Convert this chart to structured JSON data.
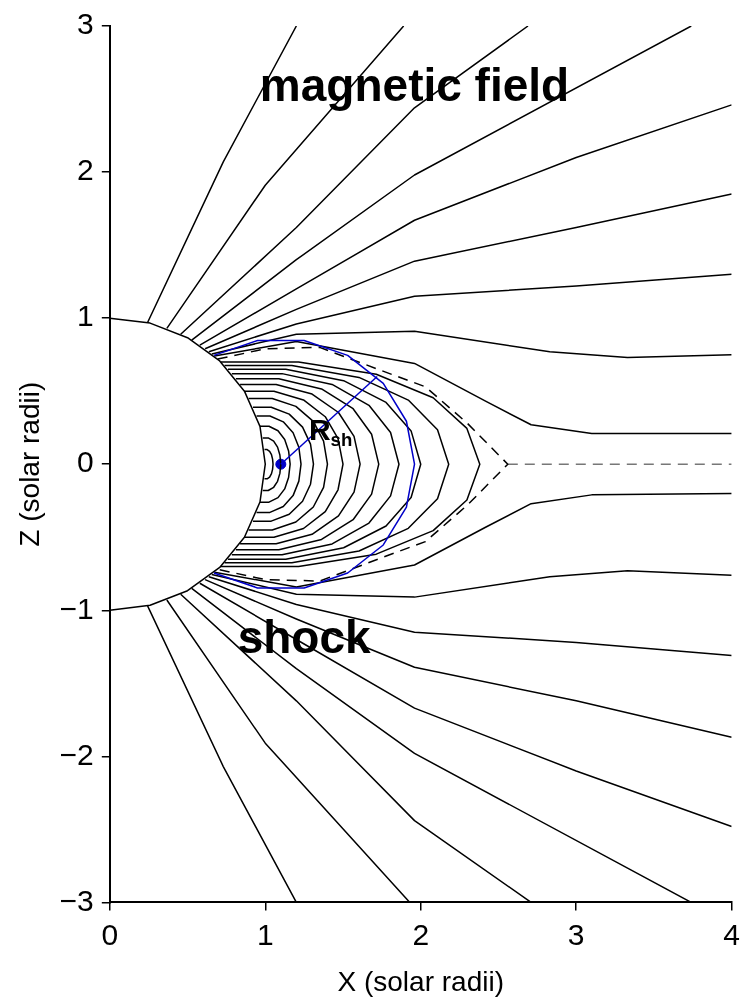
{
  "chart_data": {
    "type": "line",
    "xlabel": "X (solar radii)",
    "ylabel": "Z (solar radii)",
    "xlim": [
      0,
      4
    ],
    "xticks": [
      0,
      1,
      2,
      3,
      4
    ],
    "ylim": [
      -3,
      3
    ],
    "yticks": [
      -3,
      -2,
      -1,
      0,
      1,
      2,
      3
    ],
    "grid": false,
    "marker": "none",
    "annotations": [
      "magnetic field",
      {
        "text": "shock",
        "x": 1.25,
        "y": -0.847
      },
      {
        "text": "R$_{sh}$",
        "x": 1.42,
        "y": 0.22
      }
    ],
    "series": [
      {
        "color": "#000000",
        "x": [
          0,
          0.259,
          0.5,
          0.707,
          0.866,
          0.966,
          1,
          0.966,
          0.866,
          0.707,
          0.5,
          0.259,
          0
        ],
        "values": [
          1,
          0.966,
          0.866,
          0.707,
          0.5,
          0.259,
          0,
          -0.259,
          -0.5,
          -0.707,
          -0.866,
          -0.966,
          -1
        ]
      },
      {
        "color": "#0000c8",
        "x": [
          0.67,
          0.95,
          1.25,
          1.53,
          1.759,
          1.908,
          1.96,
          1.908,
          1.759,
          1.53,
          1.25,
          0.95,
          0.67
        ],
        "values": [
          0.745,
          0.847,
          0.847,
          0.745,
          0.553,
          0.294,
          0,
          -0.294,
          -0.553,
          -0.745,
          -0.847,
          -0.847,
          -0.745
        ]
      },
      {
        "color": "#0000c8",
        "x": [
          1.1,
          1.72
        ],
        "values": [
          0,
          0.6
        ]
      },
      {
        "color": "#000000",
        "line_style": "dashed",
        "x": [
          0.694,
          1.0,
          1.35,
          1.8,
          2.03,
          2.3,
          2.56,
          2.3,
          2.03,
          1.8,
          1.35,
          1.0,
          0.694
        ],
        "values": [
          0.72,
          0.79,
          0.8,
          0.62,
          0.53,
          0.28,
          0,
          -0.28,
          -0.53,
          -0.62,
          -0.8,
          -0.79,
          -0.72
        ]
      },
      {
        "color": "#777777",
        "line_style": "dashed",
        "x": [
          2.56,
          4
        ],
        "values": [
          0,
          0
        ]
      },
      {
        "color": "#000000",
        "x": [
          0.995,
          1.012,
          1.028,
          1.04,
          1.047,
          1.05,
          1.047,
          1.04,
          1.028,
          1.012,
          0.995
        ],
        "values": [
          0.1,
          0.1,
          0.088,
          0.065,
          0.035,
          0,
          -0.035,
          -0.065,
          -0.088,
          -0.1,
          -0.1
        ]
      },
      {
        "color": "#000000",
        "x": [
          0.984,
          1.019,
          1.054,
          1.079,
          1.094,
          1.1,
          1.094,
          1.079,
          1.054,
          1.019,
          0.984
        ],
        "values": [
          0.18,
          0.18,
          0.158,
          0.117,
          0.063,
          0,
          -0.063,
          -0.117,
          -0.158,
          -0.18,
          -0.18
        ]
      },
      {
        "color": "#000000",
        "x": [
          0.966,
          1.024,
          1.082,
          1.125,
          1.15,
          1.16,
          1.15,
          1.125,
          1.082,
          1.024,
          0.966
        ],
        "values": [
          0.26,
          0.26,
          0.229,
          0.169,
          0.091,
          0,
          -0.091,
          -0.169,
          -0.229,
          -0.26,
          -0.26
        ]
      },
      {
        "color": "#000000",
        "x": [
          0.944,
          1.03,
          1.116,
          1.179,
          1.216,
          1.23,
          1.216,
          1.179,
          1.116,
          1.03,
          0.944
        ],
        "values": [
          0.33,
          0.33,
          0.29,
          0.215,
          0.116,
          0,
          -0.116,
          -0.215,
          -0.29,
          -0.33,
          -0.33
        ]
      },
      {
        "color": "#000000",
        "x": [
          0.921,
          1.038,
          1.154,
          1.24,
          1.291,
          1.31,
          1.291,
          1.24,
          1.154,
          1.038,
          0.921
        ],
        "values": [
          0.39,
          0.39,
          0.343,
          0.254,
          0.137,
          0,
          -0.137,
          -0.254,
          -0.343,
          -0.39,
          -0.39
        ]
      },
      {
        "color": "#000000",
        "x": [
          0.893,
          1.045,
          1.197,
          1.309,
          1.375,
          1.4,
          1.375,
          1.309,
          1.197,
          1.045,
          0.893
        ],
        "values": [
          0.45,
          0.45,
          0.396,
          0.293,
          0.158,
          0,
          -0.158,
          -0.293,
          -0.396,
          -0.45,
          -0.45
        ]
      },
      {
        "color": "#000000",
        "x": [
          0.866,
          1.056,
          1.246,
          1.386,
          1.468,
          1.5,
          1.468,
          1.386,
          1.246,
          1.056,
          0.866
        ],
        "values": [
          0.5,
          0.5,
          0.44,
          0.325,
          0.175,
          0,
          -0.175,
          -0.325,
          -0.44,
          -0.5,
          -0.5
        ]
      },
      {
        "color": "#000000",
        "x": [
          0.838,
          1.07,
          1.301,
          1.471,
          1.571,
          1.61,
          1.571,
          1.471,
          1.301,
          1.07,
          0.838
        ],
        "values": [
          0.545,
          0.545,
          0.48,
          0.354,
          0.191,
          0,
          -0.191,
          -0.354,
          -0.48,
          -0.545,
          -0.545
        ]
      },
      {
        "color": "#000000",
        "x": [
          0.811,
          1.087,
          1.362,
          1.565,
          1.684,
          1.73,
          1.684,
          1.565,
          1.362,
          1.087,
          0.811
        ],
        "values": [
          0.585,
          0.585,
          0.515,
          0.38,
          0.205,
          0,
          -0.205,
          -0.38,
          -0.515,
          -0.585,
          -0.585
        ]
      },
      {
        "color": "#000000",
        "x": [
          0.785,
          1.108,
          1.43,
          1.667,
          1.806,
          1.86,
          1.806,
          1.667,
          1.43,
          1.108,
          0.785
        ],
        "values": [
          0.62,
          0.62,
          0.546,
          0.403,
          0.217,
          0,
          -0.217,
          -0.403,
          -0.546,
          -0.62,
          -0.62
        ]
      },
      {
        "color": "#000000",
        "x": [
          0.76,
          1.132,
          1.504,
          1.777,
          1.938,
          2.0,
          1.938,
          1.777,
          1.504,
          1.132,
          0.76
        ],
        "values": [
          0.65,
          0.65,
          0.572,
          0.423,
          0.228,
          0,
          -0.228,
          -0.423,
          -0.572,
          -0.65,
          -0.65
        ]
      },
      {
        "color": "#000000",
        "x": [
          0.738,
          1.171,
          1.603,
          1.92,
          2.108,
          2.18,
          2.108,
          1.92,
          1.603,
          1.171,
          0.738
        ],
        "values": [
          0.675,
          0.675,
          0.594,
          0.439,
          0.236,
          0,
          -0.236,
          -0.439,
          -0.594,
          -0.675,
          -0.675
        ]
      },
      {
        "color": "#000000",
        "x": [
          0.714,
          1.214,
          1.714,
          2.08,
          2.297,
          2.38,
          2.297,
          2.08,
          1.714,
          1.214,
          0.714
        ],
        "values": [
          0.7,
          0.7,
          0.616,
          0.455,
          0.245,
          0,
          -0.245,
          -0.455,
          -0.616,
          -0.7,
          -0.7
        ]
      },
      {
        "color": "#000000",
        "x": [
          0.243,
          0.73,
          1.2
        ],
        "values": [
          0.97,
          2.07,
          3
        ]
      },
      {
        "color": "#000000",
        "x": [
          0.367,
          1.0,
          1.89
        ],
        "values": [
          0.93,
          1.91,
          3
        ]
      },
      {
        "color": "#000000",
        "x": [
          0.456,
          1.2,
          1.96,
          2.69
        ],
        "values": [
          0.89,
          1.62,
          2.44,
          3
        ]
      },
      {
        "color": "#000000",
        "x": [
          0.527,
          1.2,
          1.96,
          3.74
        ],
        "values": [
          0.85,
          1.4,
          1.98,
          3
        ]
      },
      {
        "color": "#000000",
        "x": [
          0.579,
          1.2,
          1.96,
          3.0,
          4
        ],
        "values": [
          0.815,
          1.2,
          1.67,
          2.1,
          2.46
        ]
      },
      {
        "color": "#000000",
        "x": [
          0.613,
          1.2,
          1.96,
          3.0,
          4
        ],
        "values": [
          0.79,
          1.06,
          1.39,
          1.62,
          1.85
        ]
      },
      {
        "color": "#000000",
        "x": [
          0.637,
          1.2,
          1.96,
          3.0,
          4
        ],
        "values": [
          0.77,
          0.96,
          1.15,
          1.22,
          1.3
        ]
      },
      {
        "color": "#000000",
        "x": [
          0.656,
          1.2,
          1.96,
          2.83,
          3.33,
          4
        ],
        "values": [
          0.755,
          0.89,
          0.91,
          0.77,
          0.73,
          0.75
        ]
      },
      {
        "color": "#000000",
        "x": [
          0.673,
          1.2,
          1.96,
          2.42,
          2.71,
          3.1,
          4
        ],
        "values": [
          0.74,
          0.84,
          0.69,
          0.43,
          0.27,
          0.21,
          0.21
        ]
      },
      {
        "color": "#000000",
        "x": [
          0.243,
          0.73,
          1.2
        ],
        "values": [
          -0.97,
          -2.07,
          -3
        ]
      },
      {
        "color": "#000000",
        "x": [
          0.367,
          1.0,
          1.93
        ],
        "values": [
          -0.93,
          -1.91,
          -3
        ]
      },
      {
        "color": "#000000",
        "x": [
          0.456,
          1.2,
          1.96,
          2.71
        ],
        "values": [
          -0.89,
          -1.62,
          -2.44,
          -3
        ]
      },
      {
        "color": "#000000",
        "x": [
          0.527,
          1.2,
          1.96,
          3.74
        ],
        "values": [
          -0.85,
          -1.4,
          -1.98,
          -3
        ]
      },
      {
        "color": "#000000",
        "x": [
          0.579,
          1.2,
          1.96,
          3.0,
          4
        ],
        "values": [
          -0.815,
          -1.2,
          -1.67,
          -2.1,
          -2.48
        ]
      },
      {
        "color": "#000000",
        "x": [
          0.613,
          1.2,
          1.96,
          3.0,
          4
        ],
        "values": [
          -0.79,
          -1.06,
          -1.39,
          -1.62,
          -1.87
        ]
      },
      {
        "color": "#000000",
        "x": [
          0.637,
          1.2,
          1.96,
          3.0,
          4
        ],
        "values": [
          -0.77,
          -0.96,
          -1.15,
          -1.22,
          -1.31
        ]
      },
      {
        "color": "#000000",
        "x": [
          0.656,
          1.2,
          1.96,
          2.83,
          3.33,
          4
        ],
        "values": [
          -0.755,
          -0.89,
          -0.91,
          -0.77,
          -0.73,
          -0.76
        ]
      },
      {
        "color": "#000000",
        "x": [
          0.673,
          1.2,
          1.96,
          2.42,
          2.71,
          3.1,
          4
        ],
        "values": [
          -0.74,
          -0.84,
          -0.69,
          -0.43,
          -0.27,
          -0.21,
          -0.2
        ]
      },
      {
        "type": "scatter",
        "marker": "circle",
        "color": "#0000c8",
        "x": [
          1.1
        ],
        "values": [
          0
        ]
      }
    ]
  }
}
